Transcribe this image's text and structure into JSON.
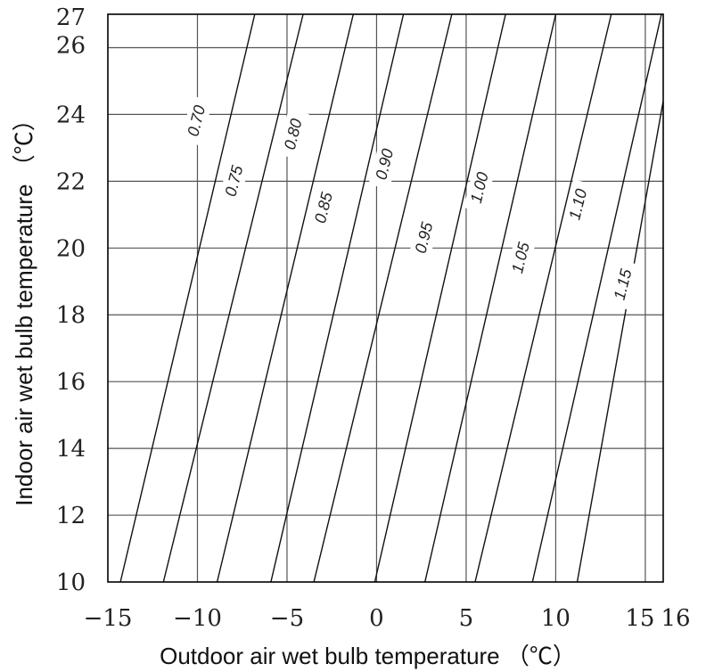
{
  "chart_data": {
    "type": "line",
    "title": "",
    "xlabel": "Outdoor air wet bulb temperature （℃）",
    "ylabel": "Indoor air wet bulb temperature （℃）",
    "xlim": [
      -15,
      16
    ],
    "ylim": [
      10,
      27
    ],
    "xticks": [
      -15,
      -10,
      -5,
      0,
      5,
      10,
      15,
      16
    ],
    "xtick_labels": [
      "−15",
      "−10",
      "−5",
      "0",
      "5",
      "10",
      "15",
      "16"
    ],
    "yticks": [
      10,
      12,
      14,
      16,
      18,
      20,
      22,
      24,
      26,
      27
    ],
    "ytick_labels": [
      "10",
      "12",
      "14",
      "16",
      "18",
      "20",
      "22",
      "24",
      "26",
      "27"
    ],
    "grid": true,
    "series": [
      {
        "name": "0.70",
        "x": [
          -14.3,
          -6.8
        ],
        "y": [
          10,
          27
        ]
      },
      {
        "name": "0.75",
        "x": [
          -11.9,
          -4.1
        ],
        "y": [
          10,
          27
        ]
      },
      {
        "name": "0.80",
        "x": [
          -8.9,
          -1.3
        ],
        "y": [
          10,
          27
        ]
      },
      {
        "name": "0.85",
        "x": [
          -5.9,
          1.5
        ],
        "y": [
          10,
          27
        ]
      },
      {
        "name": "0.90",
        "x": [
          -3.5,
          4.2
        ],
        "y": [
          10,
          27
        ]
      },
      {
        "name": "0.95",
        "x": [
          -0.1,
          7.2
        ],
        "y": [
          10,
          27
        ]
      },
      {
        "name": "1.00",
        "x": [
          2.7,
          10.0
        ],
        "y": [
          10,
          27
        ]
      },
      {
        "name": "1.05",
        "x": [
          5.5,
          13.1
        ],
        "y": [
          10,
          27
        ]
      },
      {
        "name": "1.10",
        "x": [
          8.7,
          15.9
        ],
        "y": [
          10,
          27
        ]
      },
      {
        "name": "1.15",
        "x": [
          11.2,
          16.0
        ],
        "y": [
          10,
          24.4
        ]
      }
    ],
    "line_labels": [
      {
        "text": "0.70",
        "x": -10.0,
        "y": 23.8
      },
      {
        "text": "0.75",
        "x": -7.9,
        "y": 22.0
      },
      {
        "text": "0.80",
        "x": -4.6,
        "y": 23.4
      },
      {
        "text": "0.85",
        "x": -2.9,
        "y": 21.2
      },
      {
        "text": "0.90",
        "x": 0.5,
        "y": 22.5
      },
      {
        "text": "0.95",
        "x": 2.7,
        "y": 20.3
      },
      {
        "text": "1.00",
        "x": 5.8,
        "y": 21.8
      },
      {
        "text": "1.05",
        "x": 8.1,
        "y": 19.7
      },
      {
        "text": "1.10",
        "x": 11.3,
        "y": 21.3
      },
      {
        "text": "1.15",
        "x": 13.8,
        "y": 18.9
      }
    ]
  }
}
